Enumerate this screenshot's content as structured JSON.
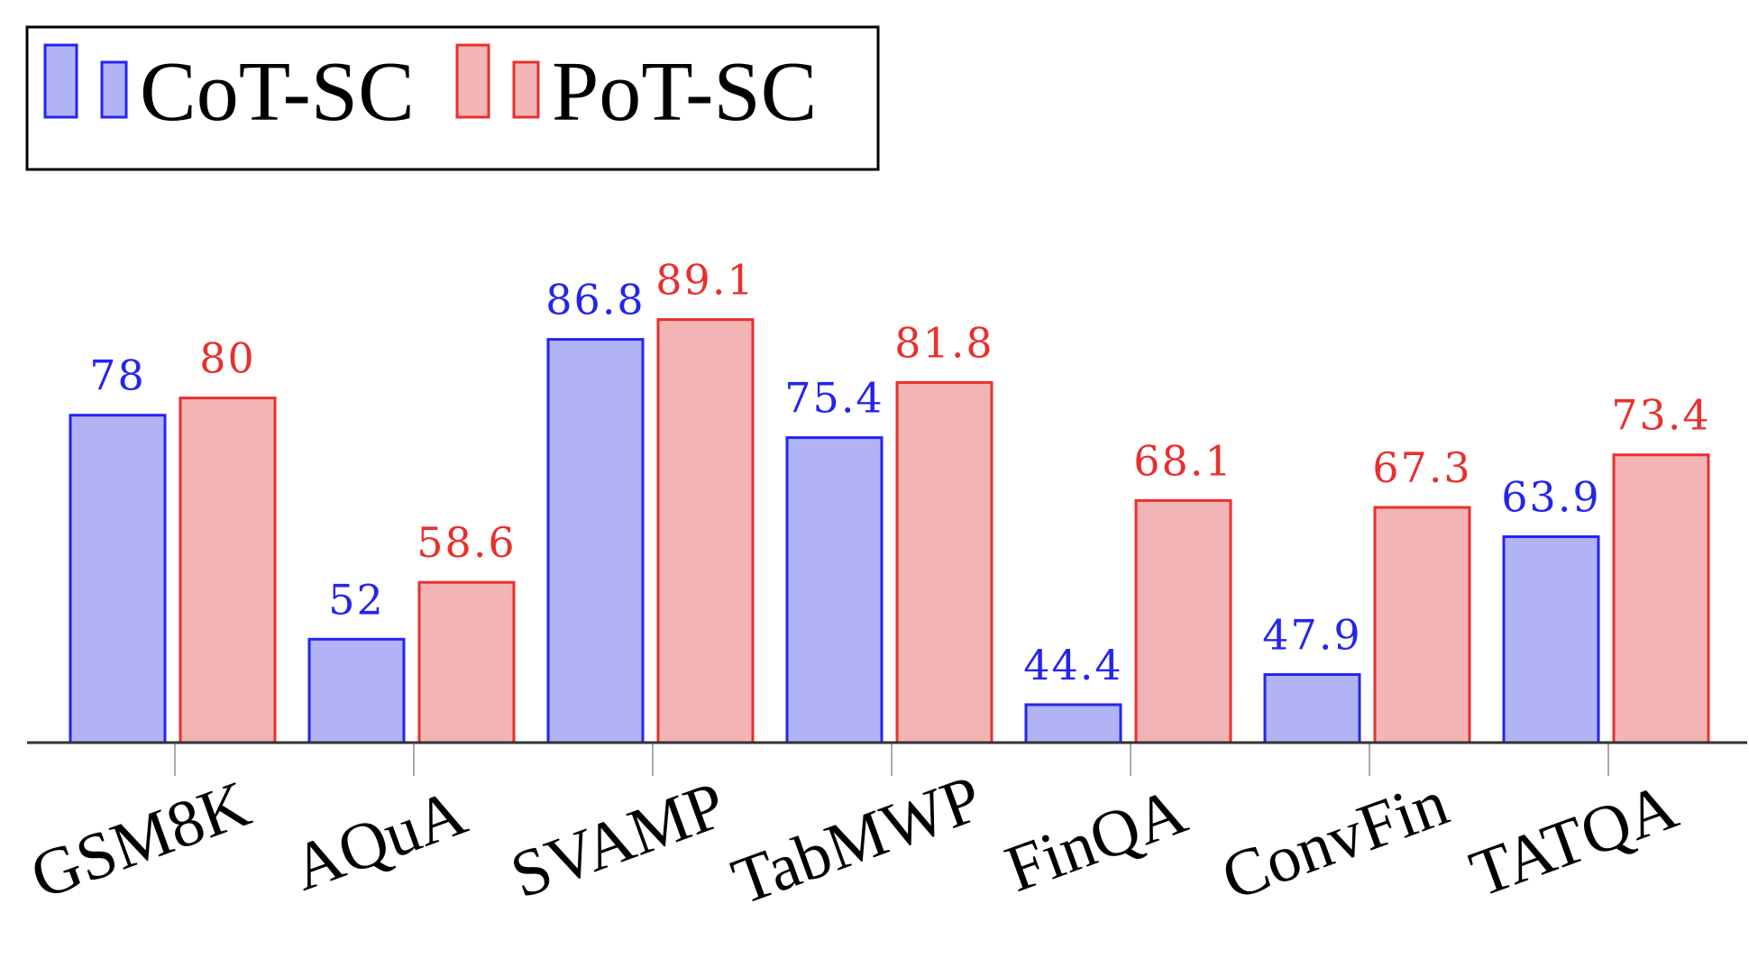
{
  "chart_data": {
    "type": "bar",
    "title": "",
    "xlabel": "",
    "ylabel": "",
    "categories": [
      "GSM8K",
      "AQuA",
      "SVAMP",
      "TabMWP",
      "FinQA",
      "ConvFin",
      "TATQA"
    ],
    "series": [
      {
        "name": "CoT-SC",
        "values": [
          78,
          52,
          86.8,
          75.4,
          44.4,
          47.9,
          63.9
        ],
        "labels": [
          "78",
          "52",
          "86.8",
          "75.4",
          "44.4",
          "47.9",
          "63.9"
        ],
        "stroke": "#2424f0",
        "fill": "#b1b3f5"
      },
      {
        "name": "PoT-SC",
        "values": [
          80,
          58.6,
          89.1,
          81.8,
          68.1,
          67.3,
          73.4
        ],
        "labels": [
          "80",
          "58.6",
          "89.1",
          "81.8",
          "68.1",
          "67.3",
          "73.4"
        ],
        "stroke": "#e8302e",
        "fill": "#f3b4b5"
      }
    ],
    "ylim": [
      40,
      91.5
    ],
    "grid": false,
    "y_axis_visible": false,
    "legend_position": "top-left",
    "axis_color": "#333333",
    "tick_color": "#aaaaaa"
  }
}
